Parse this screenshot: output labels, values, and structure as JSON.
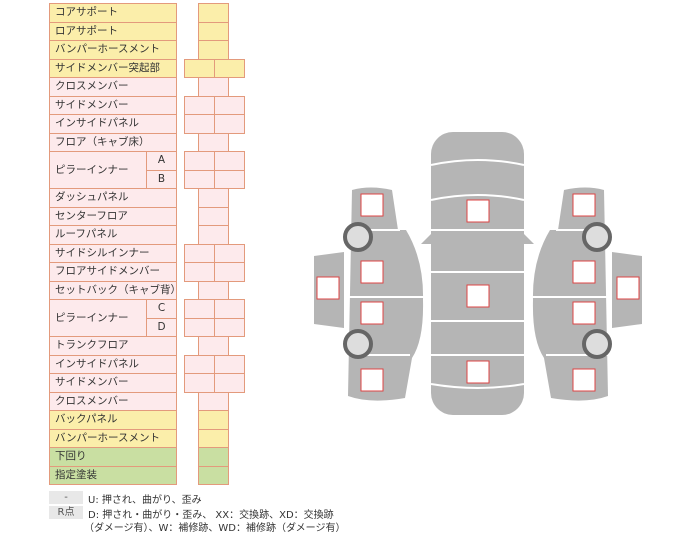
{
  "rows": [
    {
      "label": "コアサポート",
      "color": "yellow",
      "cells": 1
    },
    {
      "label": "ロアサポート",
      "color": "yellow",
      "cells": 1
    },
    {
      "label": "バンパーホースメント",
      "color": "yellow",
      "cells": 1
    },
    {
      "label": "サイドメンバー突起部",
      "color": "yellow",
      "cells": 2
    },
    {
      "label": "クロスメンバー",
      "color": "pink",
      "cells": 1
    },
    {
      "label": "サイドメンバー",
      "color": "pink",
      "cells": 2
    },
    {
      "label": "インサイドパネル",
      "color": "pink",
      "cells": 2
    },
    {
      "label": "フロア（キャブ床）",
      "color": "pink",
      "cells": 1
    },
    {
      "label": "ピラーインナー",
      "color": "pink",
      "cells": 2,
      "sub": [
        "A",
        "B"
      ]
    },
    {
      "label": "ダッシュパネル",
      "color": "pink",
      "cells": 1
    },
    {
      "label": "センターフロア",
      "color": "pink",
      "cells": 1
    },
    {
      "label": "ルーフパネル",
      "color": "pink",
      "cells": 1
    },
    {
      "label": "サイドシルインナー",
      "color": "pink",
      "cells": 2
    },
    {
      "label": "フロアサイドメンバー",
      "color": "pink",
      "cells": 2
    },
    {
      "label": "セットバック（キャブ背）",
      "color": "pink",
      "cells": 1
    },
    {
      "label": "ピラーインナー",
      "color": "pink",
      "cells": 2,
      "sub": [
        "C",
        "D"
      ]
    },
    {
      "label": "トランクフロア",
      "color": "pink",
      "cells": 1
    },
    {
      "label": "インサイドパネル",
      "color": "pink",
      "cells": 2
    },
    {
      "label": "サイドメンバー",
      "color": "pink",
      "cells": 2
    },
    {
      "label": "クロスメンバー",
      "color": "pink",
      "cells": 1
    },
    {
      "label": "バックパネル",
      "color": "yellow",
      "cells": 1
    },
    {
      "label": "バンパーホースメント",
      "color": "yellow",
      "cells": 1
    },
    {
      "label": "下回り",
      "color": "green",
      "cells": 1
    },
    {
      "label": "指定塗装",
      "color": "green",
      "cells": 1
    }
  ],
  "legend": {
    "key1": "-",
    "text1": "U: 押され、曲がり、歪み",
    "key2": "R点",
    "text2": "D: 押され・曲がり・歪み、 XX：交換跡、XD：交換跡",
    "text3": "（ダメージ有）、W：補修跡、WD：補修跡（ダメージ有）"
  },
  "colors": {
    "border": "#e39a7c",
    "yellow": "#fbeeaa",
    "pink": "#fdeaec",
    "green": "#c9dfa2",
    "body": "#b5b5b5",
    "marker": "#d44"
  }
}
